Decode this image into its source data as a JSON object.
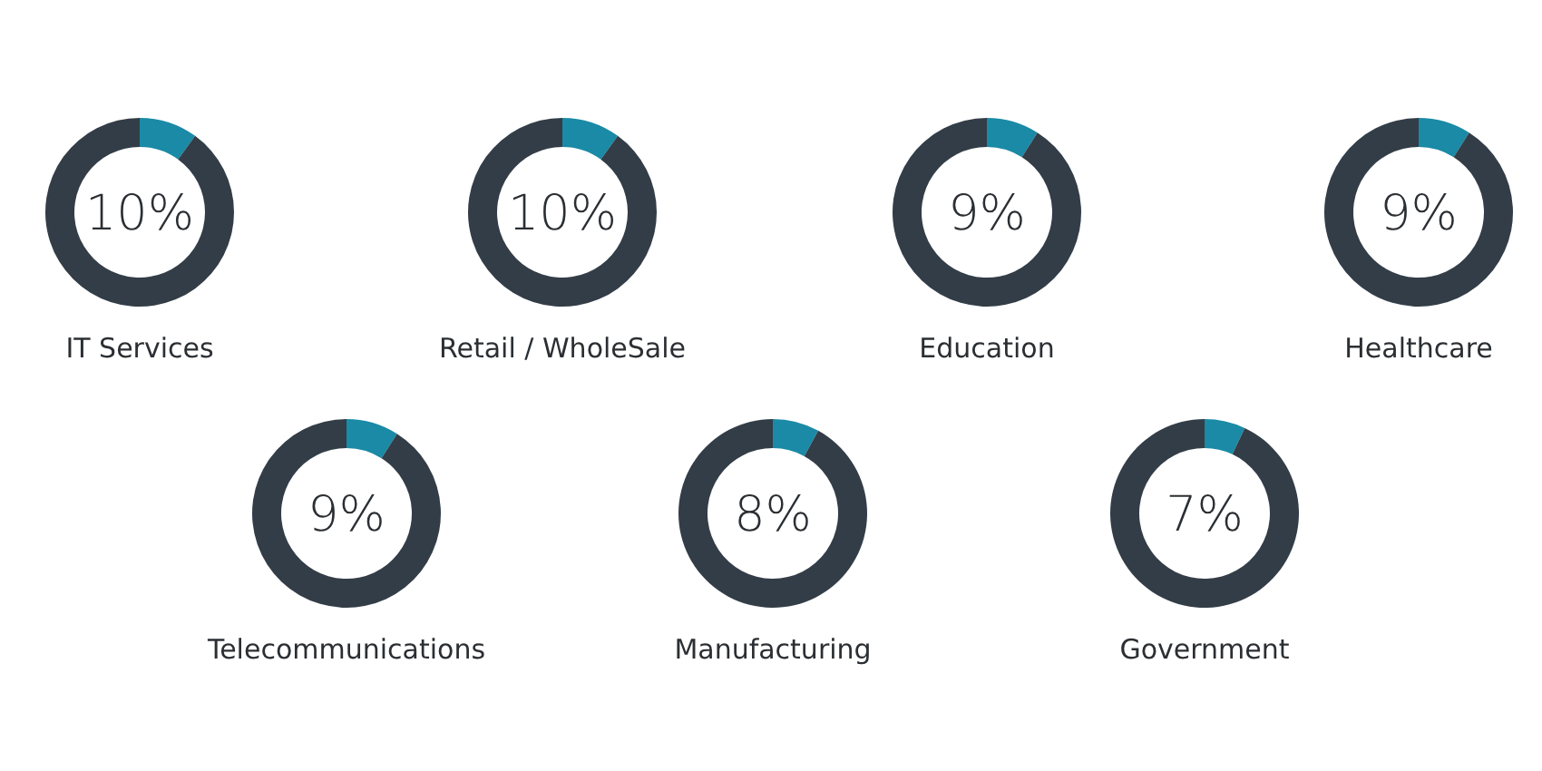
{
  "chart_data": [
    {
      "type": "donut",
      "title": "IT Services",
      "categories": [
        null,
        null
      ],
      "values": [
        10,
        90
      ],
      "colors": [
        "#1a8aa6",
        "#333d47"
      ],
      "annotations": [
        "10%"
      ]
    },
    {
      "type": "donut",
      "title": "Retail / WholeSale",
      "categories": [
        null,
        null
      ],
      "values": [
        10,
        90
      ],
      "colors": [
        "#1a8aa6",
        "#333d47"
      ],
      "annotations": [
        "10%"
      ]
    },
    {
      "type": "donut",
      "title": "Education",
      "categories": [
        null,
        null
      ],
      "values": [
        9,
        91
      ],
      "colors": [
        "#1a8aa6",
        "#333d47"
      ],
      "annotations": [
        "9%"
      ]
    },
    {
      "type": "donut",
      "title": "Healthcare",
      "categories": [
        null,
        null
      ],
      "values": [
        9,
        91
      ],
      "colors": [
        "#1a8aa6",
        "#333d47"
      ],
      "annotations": [
        "9%"
      ]
    },
    {
      "type": "donut",
      "title": "Telecommunications",
      "categories": [
        null,
        null
      ],
      "values": [
        9,
        91
      ],
      "colors": [
        "#1a8aa6",
        "#333d47"
      ],
      "annotations": [
        "9%"
      ]
    },
    {
      "type": "donut",
      "title": "Manufacturing",
      "categories": [
        null,
        null
      ],
      "values": [
        8,
        92
      ],
      "colors": [
        "#1a8aa6",
        "#333d47"
      ],
      "annotations": [
        "8%"
      ]
    },
    {
      "type": "donut",
      "title": "Government",
      "categories": [
        null,
        null
      ],
      "values": [
        7,
        93
      ],
      "colors": [
        "#1a8aa6",
        "#333d47"
      ],
      "annotations": [
        "7%"
      ]
    }
  ]
}
